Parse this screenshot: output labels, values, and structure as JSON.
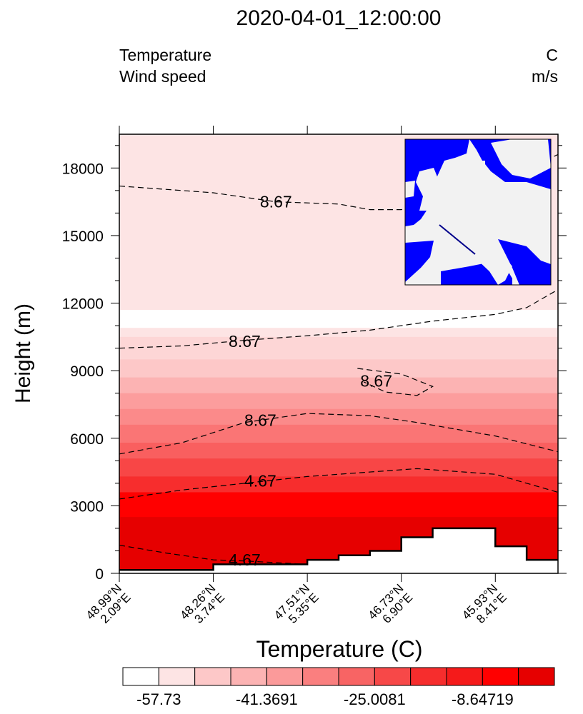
{
  "title": "2020-04-01_12:00:00",
  "left_labels": [
    "Temperature",
    "Wind speed"
  ],
  "right_labels": [
    "C",
    "m/s"
  ],
  "chart_data": {
    "type": "contour-cross-section",
    "xlabel": "Temperature (C)",
    "ylabel": "Height (m)",
    "ylim": [
      0,
      19500
    ],
    "yticks": [
      0,
      3000,
      6000,
      9000,
      12000,
      15000,
      18000
    ],
    "xticks": [
      {
        "pos": 0,
        "lat": "48.99°N",
        "lon": "2.09°E"
      },
      {
        "pos": 3,
        "lat": "48.26°N",
        "lon": "3.74°E"
      },
      {
        "pos": 6,
        "lat": "47.51°N",
        "lon": "5.35°E"
      },
      {
        "pos": 9,
        "lat": "46.73°N",
        "lon": "6.90°E"
      },
      {
        "pos": 12,
        "lat": "45.93°N",
        "lon": "8.41°E"
      }
    ],
    "xlim": [
      0,
      14
    ],
    "fill_levels": [
      {
        "top": 19500,
        "color": "#fde4e4"
      },
      {
        "top": 11700,
        "color": "#ffffff"
      },
      {
        "top": 10900,
        "color": "#fde4e4"
      },
      {
        "top": 10500,
        "color": "#fdd6d6"
      },
      {
        "top": 9500,
        "color": "#fdc8c8"
      },
      {
        "top": 8700,
        "color": "#fcb3b3"
      },
      {
        "top": 8000,
        "color": "#fc9d9d"
      },
      {
        "top": 7300,
        "color": "#fb8a8a"
      },
      {
        "top": 6600,
        "color": "#fa7575"
      },
      {
        "top": 5800,
        "color": "#f95f5f"
      },
      {
        "top": 5100,
        "color": "#f84646"
      },
      {
        "top": 4300,
        "color": "#f72d2d"
      },
      {
        "top": 3600,
        "color": "#ff0000"
      },
      {
        "top": 2500,
        "color": "#e60000"
      }
    ],
    "terrain": [
      [
        0,
        150
      ],
      [
        3,
        150
      ],
      [
        3,
        400
      ],
      [
        6,
        400
      ],
      [
        6,
        600
      ],
      [
        7,
        600
      ],
      [
        7,
        800
      ],
      [
        8,
        800
      ],
      [
        8,
        1000
      ],
      [
        9,
        1000
      ],
      [
        9,
        1600
      ],
      [
        10,
        1600
      ],
      [
        10,
        2000
      ],
      [
        12,
        2000
      ],
      [
        12,
        1200
      ],
      [
        13,
        1200
      ],
      [
        13,
        600
      ],
      [
        14,
        600
      ]
    ],
    "contours": [
      {
        "label": "8.67",
        "label_at": [
          5,
          16500
        ],
        "points": [
          [
            0,
            17200
          ],
          [
            3,
            16900
          ],
          [
            5,
            16500
          ],
          [
            7,
            16400
          ],
          [
            8,
            16150
          ],
          [
            9,
            16150
          ],
          [
            10,
            16500
          ],
          [
            12,
            17300
          ],
          [
            14,
            18600
          ]
        ]
      },
      {
        "label": "8.67",
        "label_at": [
          4,
          10300
        ],
        "points": [
          [
            0,
            10000
          ],
          [
            2,
            10100
          ],
          [
            4,
            10350
          ],
          [
            6,
            10550
          ],
          [
            8,
            10800
          ],
          [
            9,
            11000
          ],
          [
            10,
            11200
          ],
          [
            12,
            11500
          ],
          [
            13,
            11800
          ],
          [
            14,
            12600
          ]
        ]
      },
      {
        "label": "8.67",
        "label_at": [
          8.2,
          8550
        ],
        "points": [
          [
            7.6,
            9100
          ],
          [
            9,
            8850
          ],
          [
            10,
            8300
          ],
          [
            9.5,
            7900
          ],
          [
            8.5,
            8050
          ],
          [
            7.8,
            8500
          ]
        ]
      },
      {
        "label": "8.67",
        "label_at": [
          4.5,
          6800
        ],
        "points": [
          [
            0,
            5300
          ],
          [
            2,
            5800
          ],
          [
            4,
            6700
          ],
          [
            6,
            7100
          ],
          [
            8,
            7000
          ],
          [
            9.5,
            6700
          ],
          [
            12,
            6100
          ],
          [
            14,
            5400
          ]
        ]
      },
      {
        "label": "4.67",
        "label_at": [
          4.5,
          4100
        ],
        "points": [
          [
            0,
            3300
          ],
          [
            2,
            3700
          ],
          [
            4,
            4000
          ],
          [
            6,
            4300
          ],
          [
            8,
            4500
          ],
          [
            9.5,
            4650
          ],
          [
            12,
            4400
          ],
          [
            14,
            3600
          ]
        ]
      },
      {
        "label": "4.67",
        "label_at": [
          4,
          600
        ],
        "points": [
          [
            0,
            1250
          ],
          [
            1.5,
            900
          ],
          [
            3,
            600
          ],
          [
            4,
            550
          ],
          [
            6,
            400
          ]
        ]
      }
    ],
    "colorbar": {
      "colors": [
        "#ffffff",
        "#fde4e4",
        "#fdc8c8",
        "#fcb3b3",
        "#fb9a9a",
        "#fa7f7f",
        "#f86464",
        "#f74848",
        "#f62d2d",
        "#f51a1a",
        "#ff0000",
        "#e60000"
      ],
      "labels": [
        "-57.73",
        "-41.3691",
        "-25.0081",
        "-8.64719"
      ]
    },
    "inset_map": {
      "land": "#f2f2f2",
      "water": "#0000ff",
      "line": "#00008b"
    }
  }
}
